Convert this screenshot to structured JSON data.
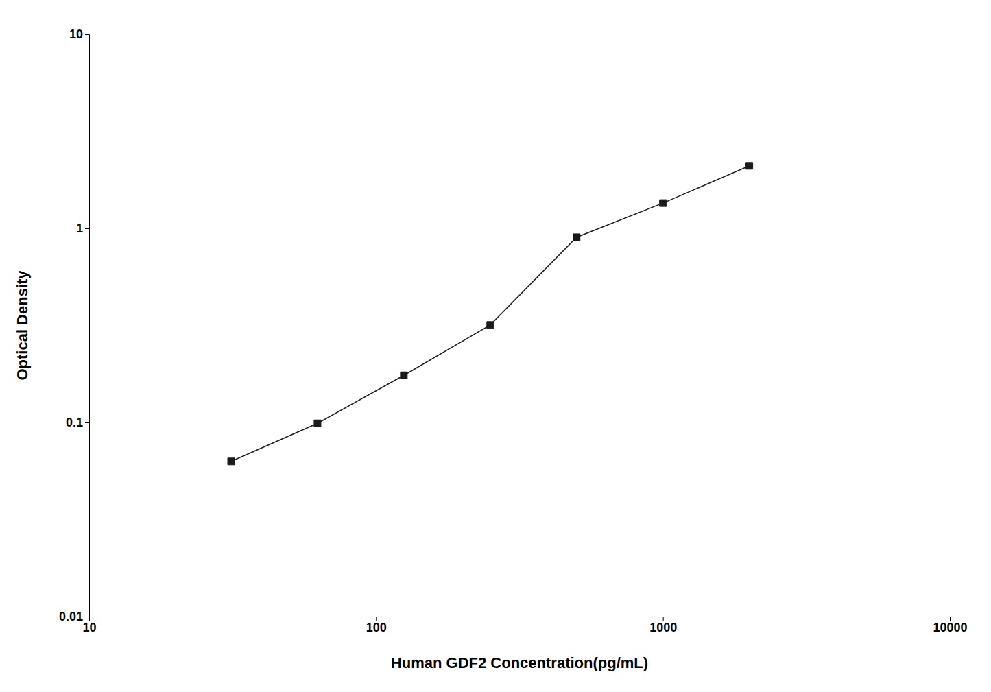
{
  "chart_data": {
    "type": "line",
    "x": [
      31.25,
      62.5,
      125,
      250,
      500,
      1000,
      2000
    ],
    "values": [
      0.063,
      0.099,
      0.175,
      0.318,
      0.9,
      1.35,
      2.1
    ],
    "color": "#1a1a1a",
    "marker": "square",
    "log": true,
    "grid": false,
    "xlabel": "Human GDF2 Concentration(pg/mL)",
    "ylabel": "Optical Density",
    "xlim": [
      10,
      10000
    ],
    "ylim": [
      0.01,
      10
    ],
    "xticks": [
      10,
      100,
      1000,
      10000
    ],
    "yticks": [
      0.01,
      0.1,
      1,
      10
    ]
  }
}
